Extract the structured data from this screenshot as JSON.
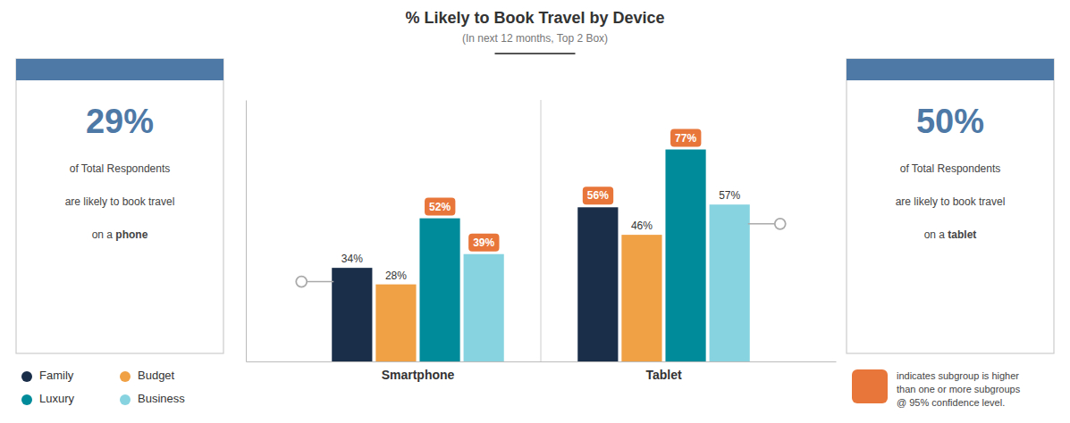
{
  "chart_data": {
    "type": "bar",
    "title": "% Likely to Book Travel by Device",
    "subtitle": "(In next 12 months, Top 2 Box)",
    "categories": [
      "Smartphone",
      "Tablet"
    ],
    "series": [
      {
        "name": "Family",
        "color": "#1a2e4a",
        "values": [
          34,
          56
        ],
        "value_labels": [
          "34%",
          "56%"
        ],
        "highlighted": [
          false,
          true
        ]
      },
      {
        "name": "Budget",
        "color": "#f0a045",
        "values": [
          28,
          46
        ],
        "value_labels": [
          "28%",
          "46%"
        ],
        "highlighted": [
          false,
          false
        ]
      },
      {
        "name": "Luxury",
        "color": "#008b9a",
        "values": [
          52,
          77
        ],
        "value_labels": [
          "52%",
          "77%"
        ],
        "highlighted": [
          true,
          true
        ]
      },
      {
        "name": "Business",
        "color": "#87d3e0",
        "values": [
          39,
          57
        ],
        "value_labels": [
          "39%",
          "57%"
        ],
        "highlighted": [
          true,
          false
        ]
      }
    ],
    "ylim": [
      0,
      95
    ],
    "yticks": [],
    "tick_labels": "x",
    "data_labels": true,
    "legend": "bottom",
    "callouts": [
      {
        "value": 29,
        "label": "29%",
        "lines": [
          "of Total Respondents",
          "are likely to book travel"
        ],
        "lead": "on a ",
        "emphasis": "phone"
      },
      {
        "value": 50,
        "label": "50%",
        "lines": [
          "of Total Respondents",
          "are likely to book travel"
        ],
        "lead": "on a ",
        "emphasis": "tablet"
      }
    ],
    "highlight": {
      "color": "#e8763a",
      "lines": [
        "indicates subgroup is higher",
        "than one or more subgroups",
        "@ 95% confidence level."
      ]
    }
  }
}
